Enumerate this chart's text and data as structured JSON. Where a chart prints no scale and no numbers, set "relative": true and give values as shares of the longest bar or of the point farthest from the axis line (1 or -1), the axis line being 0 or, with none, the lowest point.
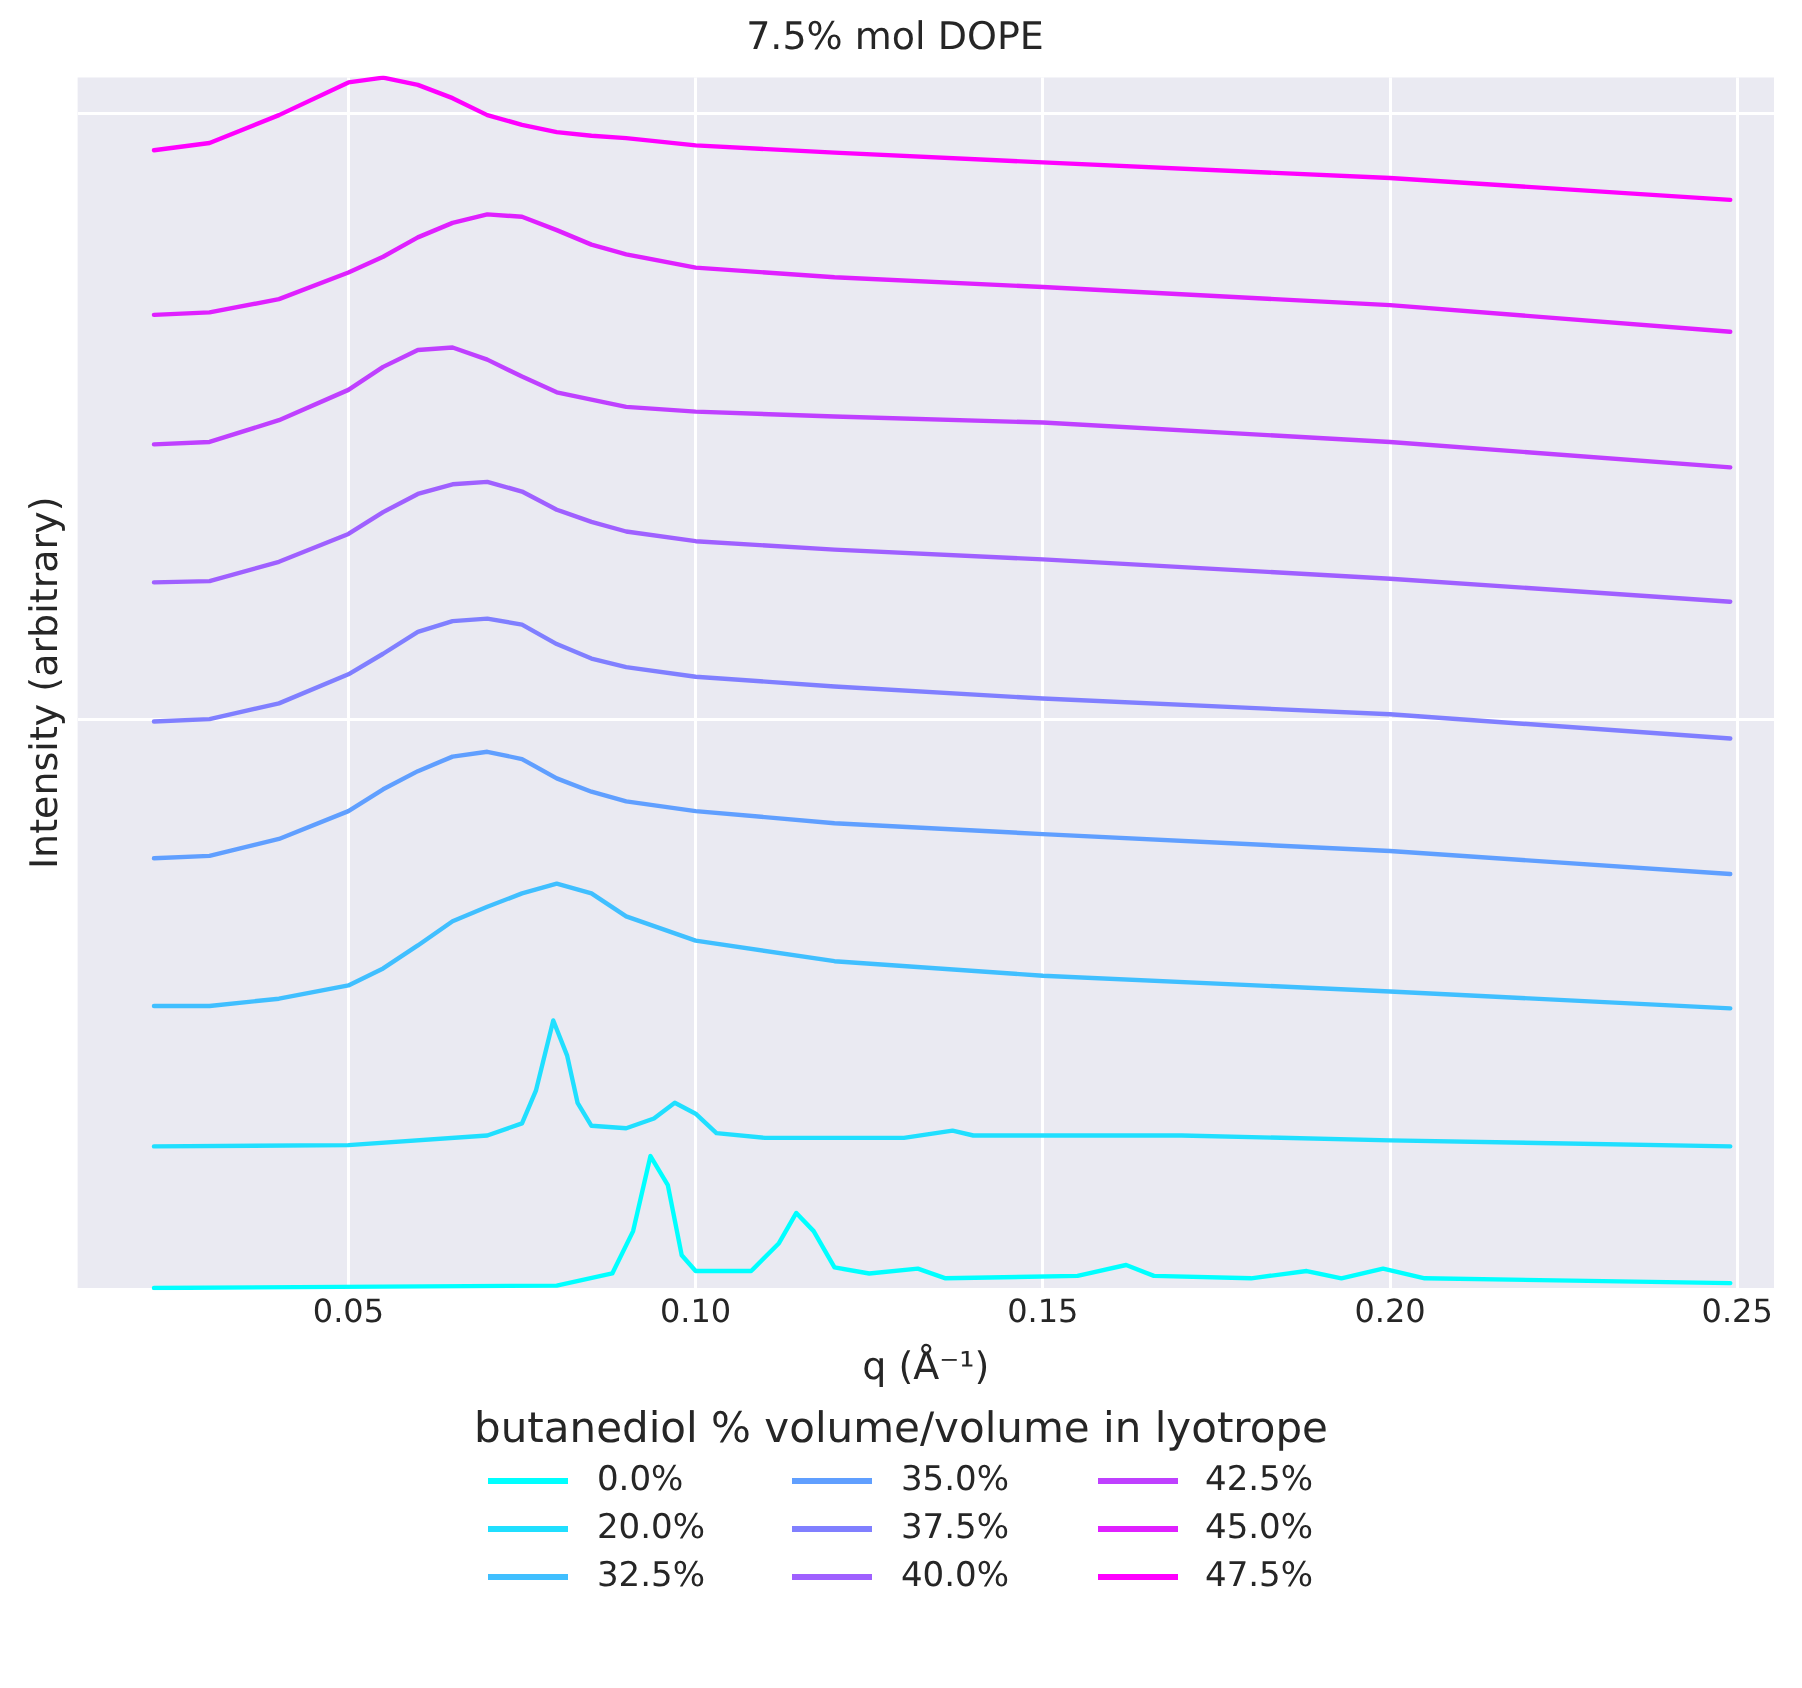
{
  "chart_data": {
    "type": "line",
    "title": "7.5% mol DOPE",
    "xlabel": "q (Å⁻¹)",
    "ylabel": "Intensity (arbitrary)",
    "legend_title": "butanediol % volume/volume in lyotrope",
    "relative": true,
    "grid": true,
    "legend": "bottom",
    "marker": "none",
    "line_style": "solid",
    "xlim": [
      0.011,
      0.2553
    ],
    "xticks": [
      0.05,
      {
        "value": 0.1,
        "label": "0.10"
      },
      0.15,
      {
        "value": 0.2,
        "label": "0.20"
      },
      0.25
    ],
    "x": [
      0.022,
      0.03,
      0.04,
      0.05,
      0.055,
      0.06,
      0.065,
      0.07,
      0.075,
      0.08,
      0.085,
      0.09,
      0.1,
      0.12,
      0.15,
      0.2,
      0.249
    ],
    "series": [
      {
        "name": "0.0%",
        "color": "#00ffff",
        "x": [
          0.022,
          0.08,
          0.088,
          0.091,
          0.0935,
          0.096,
          0.098,
          0.1,
          0.108,
          0.112,
          0.1145,
          0.117,
          0.12,
          0.125,
          0.132,
          0.136,
          0.155,
          0.162,
          0.166,
          0.18,
          0.188,
          0.193,
          0.199,
          0.205,
          0.249
        ],
        "values": [
          0,
          0.002,
          0.012,
          0.047,
          0.109,
          0.085,
          0.027,
          0.014,
          0.014,
          0.037,
          0.062,
          0.047,
          0.017,
          0.012,
          0.016,
          0.008,
          0.01,
          0.019,
          0.01,
          0.008,
          0.014,
          0.008,
          0.016,
          0.008,
          0.004
        ]
      },
      {
        "name": "20.0%",
        "color": "#20dfff",
        "x": [
          0.022,
          0.05,
          0.07,
          0.075,
          0.077,
          0.0795,
          0.0815,
          0.083,
          0.085,
          0.09,
          0.094,
          0.097,
          0.1,
          0.103,
          0.11,
          0.13,
          0.137,
          0.14,
          0.17,
          0.2,
          0.249
        ],
        "values": [
          0.117,
          0.118,
          0.126,
          0.136,
          0.163,
          0.221,
          0.192,
          0.153,
          0.134,
          0.132,
          0.14,
          0.153,
          0.144,
          0.128,
          0.124,
          0.124,
          0.13,
          0.126,
          0.126,
          0.122,
          0.117
        ]
      },
      {
        "name": "32.5%",
        "color": "#40bfff",
        "values": [
          0.233,
          0.233,
          0.239,
          0.25,
          0.264,
          0.283,
          0.303,
          0.315,
          0.326,
          0.334,
          0.326,
          0.307,
          0.287,
          0.27,
          0.258,
          0.245,
          0.231
        ]
      },
      {
        "name": "35.0%",
        "color": "#609fff",
        "values": [
          0.355,
          0.357,
          0.371,
          0.394,
          0.412,
          0.427,
          0.439,
          0.443,
          0.437,
          0.421,
          0.41,
          0.402,
          0.394,
          0.384,
          0.375,
          0.361,
          0.342
        ]
      },
      {
        "name": "37.5%",
        "color": "#807fff",
        "values": [
          0.468,
          0.47,
          0.483,
          0.507,
          0.524,
          0.542,
          0.551,
          0.553,
          0.548,
          0.532,
          0.52,
          0.513,
          0.505,
          0.497,
          0.487,
          0.474,
          0.454
        ]
      },
      {
        "name": "40.0%",
        "color": "#9f60ff",
        "values": [
          0.583,
          0.584,
          0.6,
          0.623,
          0.641,
          0.656,
          0.664,
          0.666,
          0.658,
          0.643,
          0.633,
          0.625,
          0.617,
          0.61,
          0.602,
          0.586,
          0.567
        ]
      },
      {
        "name": "42.5%",
        "color": "#bf40ff",
        "values": [
          0.697,
          0.699,
          0.717,
          0.742,
          0.761,
          0.775,
          0.777,
          0.767,
          0.753,
          0.74,
          0.734,
          0.728,
          0.724,
          0.72,
          0.715,
          0.699,
          0.678
        ]
      },
      {
        "name": "45.0%",
        "color": "#df20ff",
        "values": [
          0.804,
          0.806,
          0.817,
          0.839,
          0.852,
          0.868,
          0.88,
          0.887,
          0.885,
          0.874,
          0.862,
          0.854,
          0.843,
          0.835,
          0.827,
          0.812,
          0.79
        ]
      },
      {
        "name": "47.5%",
        "color": "#ff00ff",
        "values": [
          0.94,
          0.946,
          0.969,
          0.996,
          1,
          0.994,
          0.983,
          0.969,
          0.961,
          0.955,
          0.952,
          0.95,
          0.944,
          0.938,
          0.93,
          0.917,
          0.899
        ]
      }
    ]
  }
}
